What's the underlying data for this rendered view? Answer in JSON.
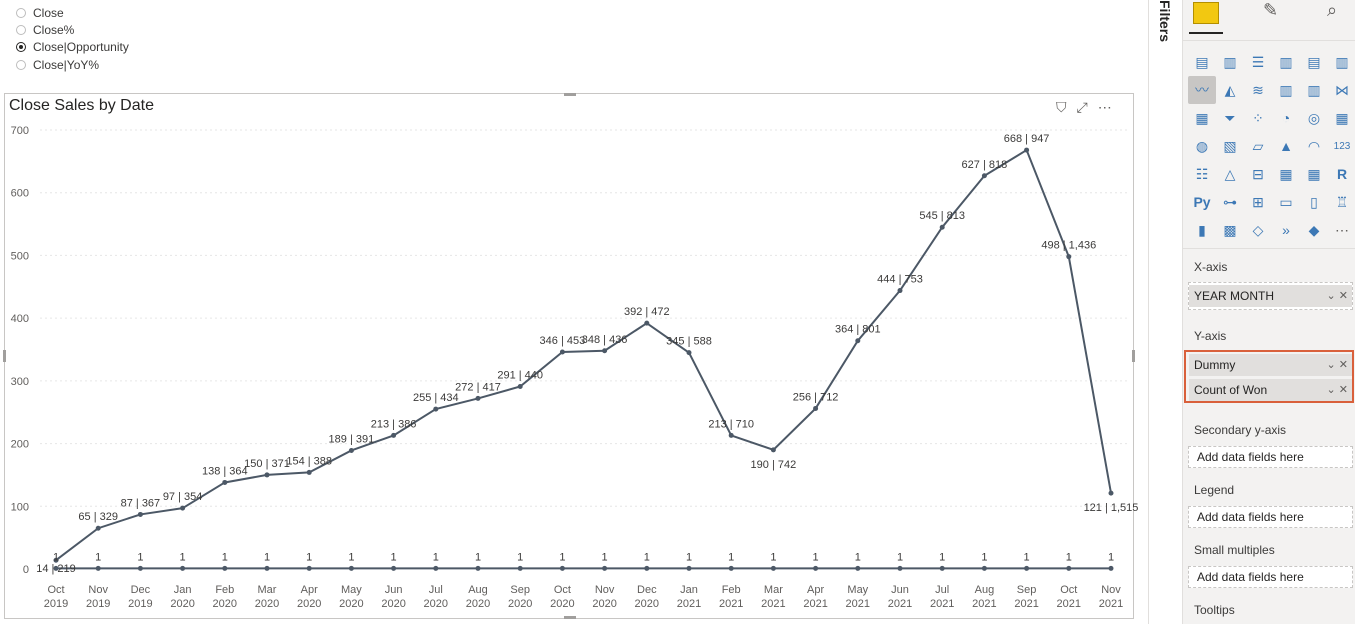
{
  "radio_options": [
    {
      "label": "Close",
      "selected": false
    },
    {
      "label": "Close%",
      "selected": false
    },
    {
      "label": "Close|Opportunity",
      "selected": true
    },
    {
      "label": "Close|YoY%",
      "selected": false
    }
  ],
  "filters_label": "Filters",
  "pane": {
    "x_axis_label": "X-axis",
    "x_axis_field": "YEAR MONTH",
    "y_axis_label": "Y-axis",
    "y_axis_fields": [
      "Dummy",
      "Count of Won"
    ],
    "secondary_label": "Secondary y-axis",
    "legend_label": "Legend",
    "small_multiples_label": "Small multiples",
    "tooltips_label": "Tooltips",
    "add_placeholder": "Add data fields here"
  },
  "chart_data": {
    "type": "line",
    "title": "Close Sales by Date",
    "ylim": [
      0,
      700
    ],
    "yticks": [
      0,
      100,
      200,
      300,
      400,
      500,
      600,
      700
    ],
    "categories": [
      [
        "Oct",
        "2019"
      ],
      [
        "Nov",
        "2019"
      ],
      [
        "Dec",
        "2019"
      ],
      [
        "Jan",
        "2020"
      ],
      [
        "Feb",
        "2020"
      ],
      [
        "Mar",
        "2020"
      ],
      [
        "Apr",
        "2020"
      ],
      [
        "May",
        "2020"
      ],
      [
        "Jun",
        "2020"
      ],
      [
        "Jul",
        "2020"
      ],
      [
        "Aug",
        "2020"
      ],
      [
        "Sep",
        "2020"
      ],
      [
        "Oct",
        "2020"
      ],
      [
        "Nov",
        "2020"
      ],
      [
        "Dec",
        "2020"
      ],
      [
        "Jan",
        "2021"
      ],
      [
        "Feb",
        "2021"
      ],
      [
        "Mar",
        "2021"
      ],
      [
        "Apr",
        "2021"
      ],
      [
        "May",
        "2021"
      ],
      [
        "Jun",
        "2021"
      ],
      [
        "Jul",
        "2021"
      ],
      [
        "Aug",
        "2021"
      ],
      [
        "Sep",
        "2021"
      ],
      [
        "Oct",
        "2021"
      ],
      [
        "Nov",
        "2021"
      ]
    ],
    "series": [
      {
        "name": "Count of Won",
        "values": [
          14,
          65,
          87,
          97,
          138,
          150,
          154,
          189,
          213,
          255,
          272,
          291,
          346,
          348,
          392,
          345,
          213,
          190,
          256,
          364,
          444,
          545,
          627,
          668,
          498,
          121
        ],
        "labels": [
          "14 | 219",
          "65 | 329",
          "87 | 367",
          "97 | 354",
          "138 | 364",
          "150 | 371",
          "154 | 388",
          "189 | 391",
          "213 | 386",
          "255 | 434",
          "272 | 417",
          "291 | 440",
          "346 | 453",
          "348 | 436",
          "392 | 472",
          "345 | 588",
          "213 | 710",
          "190 | 742",
          "256 | 712",
          "364 | 801",
          "444 | 753",
          "545 | 813",
          "627 | 818",
          "668 | 947",
          "498 | 1,436",
          "121 | 1,515"
        ]
      },
      {
        "name": "Dummy",
        "values": [
          1,
          1,
          1,
          1,
          1,
          1,
          1,
          1,
          1,
          1,
          1,
          1,
          1,
          1,
          1,
          1,
          1,
          1,
          1,
          1,
          1,
          1,
          1,
          1,
          1,
          1
        ],
        "labels": [
          "1",
          "1",
          "1",
          "1",
          "1",
          "1",
          "1",
          "1",
          "1",
          "1",
          "1",
          "1",
          "1",
          "1",
          "1",
          "1",
          "1",
          "1",
          "1",
          "1",
          "1",
          "1",
          "1",
          "1",
          "1",
          "1"
        ]
      }
    ],
    "colors": {
      "line": "#4c5866",
      "grid": "#e6e6e6",
      "text": "#605e5c"
    }
  }
}
